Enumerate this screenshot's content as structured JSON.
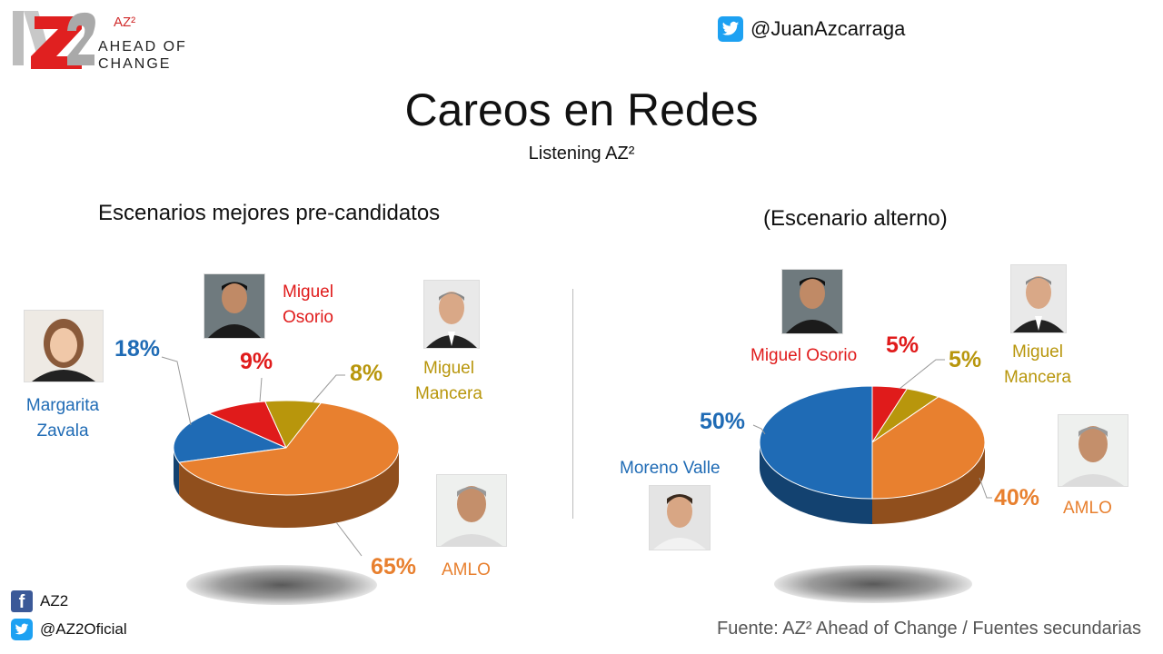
{
  "brand": {
    "logo_letters": "AZ2",
    "tag": "AZ²",
    "line1": "AHEAD OF",
    "line2": "CHANGE"
  },
  "header": {
    "twitter_handle": "@JuanAzcarraga",
    "title": "Careos en Redes",
    "subtitle": "Listening AZ²"
  },
  "colors": {
    "blue": "#1f6bb5",
    "red": "#e01b1b",
    "gold": "#b8960c",
    "orange": "#e8802f"
  },
  "chart_data": [
    {
      "type": "pie",
      "title": "Escenarios mejores pre-candidatos",
      "slices": [
        {
          "name": "Margarita Zavala",
          "value": 18,
          "label": "18%",
          "color": "#1f6bb5"
        },
        {
          "name": "Miguel Osorio",
          "value": 9,
          "label": "9%",
          "color": "#e01b1b"
        },
        {
          "name": "Miguel Mancera",
          "value": 8,
          "label": "8%",
          "color": "#b8960c"
        },
        {
          "name": "AMLO",
          "value": 65,
          "label": "65%",
          "color": "#e8802f"
        }
      ]
    },
    {
      "type": "pie",
      "title": "(Escenario alterno)",
      "slices": [
        {
          "name": "Moreno Valle",
          "value": 50,
          "label": "50%",
          "color": "#1f6bb5"
        },
        {
          "name": "Miguel Osorio",
          "value": 5,
          "label": "5%",
          "color": "#e01b1b"
        },
        {
          "name": "Miguel Mancera",
          "value": 5,
          "label": "5%",
          "color": "#b8960c"
        },
        {
          "name": "AMLO",
          "value": 40,
          "label": "40%",
          "color": "#e8802f"
        }
      ]
    }
  ],
  "left": {
    "zavala_l1": "Margarita",
    "zavala_l2": "Zavala",
    "osorio_l1": "Miguel",
    "osorio_l2": "Osorio",
    "mancera_l1": "Miguel",
    "mancera_l2": "Mancera",
    "amlo": "AMLO"
  },
  "right": {
    "osorio": "Miguel Osorio",
    "mancera_l1": "Miguel",
    "mancera_l2": "Mancera",
    "moreno": "Moreno Valle",
    "amlo": "AMLO"
  },
  "footer": {
    "facebook": "AZ2",
    "twitter": "@AZ2Oficial",
    "source": "Fuente: AZ² Ahead of Change / Fuentes secundarias"
  }
}
